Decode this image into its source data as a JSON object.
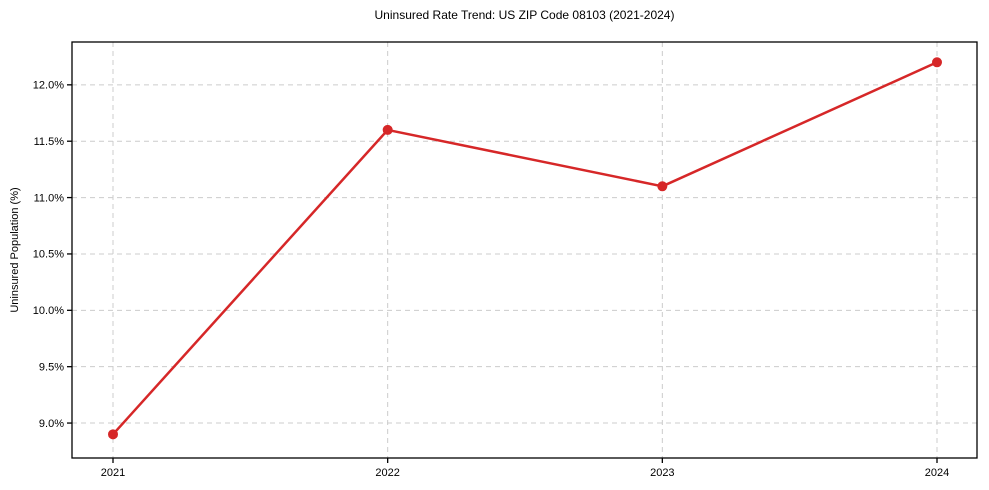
{
  "page": {
    "background_color": "#ffffff"
  },
  "chart_data": {
    "type": "line",
    "title": "Uninsured Rate Trend: US ZIP Code 08103 (2021-2024)",
    "xlabel": "",
    "ylabel": "Uninsured Population (%)",
    "categories": [
      "2021",
      "2022",
      "2023",
      "2024"
    ],
    "series": [
      {
        "name": "Uninsured rate",
        "values": [
          8.9,
          11.6,
          11.1,
          12.2
        ]
      }
    ],
    "y_ticks": [
      9.0,
      9.5,
      10.0,
      10.5,
      11.0,
      11.5,
      12.0
    ],
    "y_tick_labels": [
      "9.0%",
      "9.5%",
      "10.0%",
      "10.5%",
      "11.0%",
      "11.5%",
      "12.0%"
    ],
    "ylim": [
      8.69,
      12.38
    ],
    "grid": "dashed",
    "grid_on": true,
    "legend": "none",
    "line_color": "#d62728",
    "grid_color": "#cccccc",
    "axis_color": "#000000",
    "marker": "circle"
  }
}
